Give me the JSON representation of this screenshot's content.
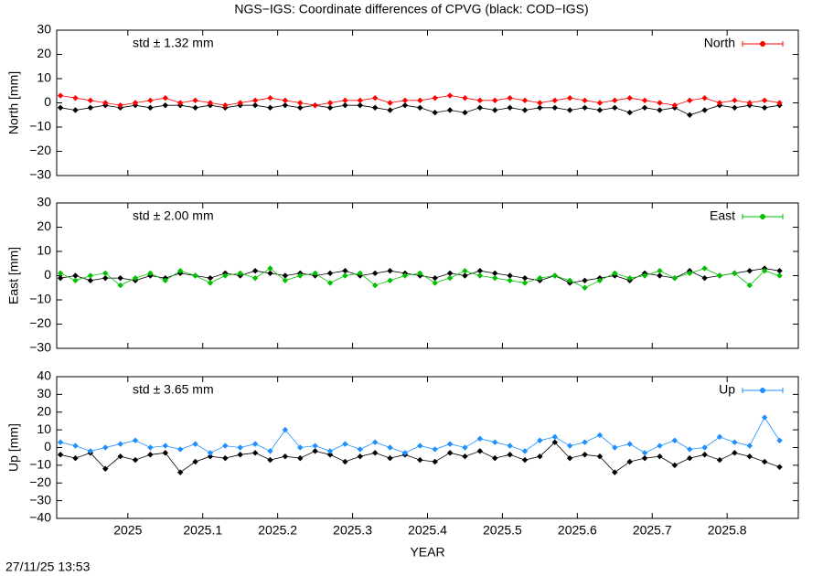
{
  "timestamp": "27/11/25 13:53",
  "chart_data": [
    {
      "type": "line",
      "title": "NGS−IGS: Coordinate differences of CPVG (black: COD−IGS)",
      "ylabel": "North [mm]",
      "annotation": "std ± 1.32 mm",
      "annotation_color": "#ff0000",
      "xlim": [
        2024.905,
        2025.895
      ],
      "xticks": [
        2025,
        2025.1,
        2025.2,
        2025.3,
        2025.4,
        2025.5,
        2025.6,
        2025.7,
        2025.8
      ],
      "ylim": [
        -30,
        30
      ],
      "yticks": [
        {
          "value": -30,
          "label": "−30"
        },
        {
          "value": -20,
          "label": "−20"
        },
        {
          "value": -10,
          "label": "−10"
        },
        0,
        10,
        20,
        30
      ],
      "legend": "upper right",
      "x": [
        2024.91,
        2024.93,
        2024.95,
        2024.97,
        2024.99,
        2025.01,
        2025.03,
        2025.05,
        2025.07,
        2025.09,
        2025.11,
        2025.13,
        2025.15,
        2025.17,
        2025.19,
        2025.21,
        2025.23,
        2025.25,
        2025.27,
        2025.29,
        2025.31,
        2025.33,
        2025.35,
        2025.37,
        2025.39,
        2025.41,
        2025.43,
        2025.45,
        2025.47,
        2025.49,
        2025.51,
        2025.53,
        2025.55,
        2025.57,
        2025.59,
        2025.61,
        2025.63,
        2025.65,
        2025.67,
        2025.69,
        2025.71,
        2025.73,
        2025.75,
        2025.77,
        2025.79,
        2025.81,
        2025.83,
        2025.85,
        2025.87
      ],
      "series": [
        {
          "color": "#000000",
          "values": [
            -2,
            -3,
            -2,
            -1,
            -2,
            -1,
            -2,
            -1,
            -1,
            -2,
            -1,
            -2,
            -1,
            -1,
            -2,
            -1,
            -2,
            -1,
            -2,
            -1,
            -1,
            -2,
            -3,
            -1,
            -2,
            -4,
            -3,
            -4,
            -2,
            -3,
            -2,
            -3,
            -2,
            -2,
            -3,
            -2,
            -3,
            -2,
            -4,
            -2,
            -3,
            -2,
            -5,
            -3,
            -1,
            -2,
            -1,
            -2,
            -1
          ]
        },
        {
          "name": "North",
          "color": "#ff0000",
          "values": [
            3,
            2,
            1,
            0,
            -1,
            0,
            1,
            2,
            0,
            1,
            0,
            -1,
            0,
            1,
            2,
            1,
            0,
            -1,
            0,
            1,
            1,
            2,
            0,
            1,
            1,
            2,
            3,
            2,
            1,
            1,
            2,
            1,
            0,
            1,
            2,
            1,
            0,
            1,
            2,
            1,
            0,
            -1,
            1,
            2,
            0,
            1,
            0,
            1,
            0
          ]
        }
      ]
    },
    {
      "type": "line",
      "ylabel": "East [mm]",
      "annotation": "std ± 2.00 mm",
      "annotation_color": "#00c000",
      "xlim": [
        2024.905,
        2025.895
      ],
      "xticks": [
        2025,
        2025.1,
        2025.2,
        2025.3,
        2025.4,
        2025.5,
        2025.6,
        2025.7,
        2025.8
      ],
      "ylim": [
        -30,
        30
      ],
      "yticks": [
        {
          "value": -30,
          "label": "−30"
        },
        {
          "value": -20,
          "label": "−20"
        },
        {
          "value": -10,
          "label": "−10"
        },
        0,
        10,
        20,
        30
      ],
      "legend": "upper right",
      "x": [
        2024.91,
        2024.93,
        2024.95,
        2024.97,
        2024.99,
        2025.01,
        2025.03,
        2025.05,
        2025.07,
        2025.09,
        2025.11,
        2025.13,
        2025.15,
        2025.17,
        2025.19,
        2025.21,
        2025.23,
        2025.25,
        2025.27,
        2025.29,
        2025.31,
        2025.33,
        2025.35,
        2025.37,
        2025.39,
        2025.41,
        2025.43,
        2025.45,
        2025.47,
        2025.49,
        2025.51,
        2025.53,
        2025.55,
        2025.57,
        2025.59,
        2025.61,
        2025.63,
        2025.65,
        2025.67,
        2025.69,
        2025.71,
        2025.73,
        2025.75,
        2025.77,
        2025.79,
        2025.81,
        2025.83,
        2025.85,
        2025.87
      ],
      "series": [
        {
          "color": "#000000",
          "values": [
            -1,
            0,
            -2,
            -1,
            -1,
            -2,
            0,
            -1,
            1,
            0,
            -1,
            1,
            0,
            2,
            1,
            0,
            1,
            0,
            1,
            2,
            0,
            1,
            2,
            1,
            0,
            -1,
            1,
            0,
            2,
            1,
            0,
            -1,
            -2,
            0,
            -3,
            -2,
            -1,
            0,
            -2,
            1,
            0,
            -1,
            2,
            -1,
            0,
            1,
            2,
            3,
            2
          ]
        },
        {
          "name": "East",
          "color": "#00c000",
          "values": [
            1,
            -2,
            0,
            1,
            -4,
            -1,
            1,
            -2,
            2,
            0,
            -3,
            0,
            1,
            -1,
            3,
            -2,
            0,
            1,
            -3,
            0,
            1,
            -4,
            -2,
            0,
            1,
            -3,
            -1,
            2,
            0,
            -1,
            -2,
            -3,
            -1,
            0,
            -2,
            -5,
            -2,
            1,
            -1,
            0,
            2,
            -1,
            1,
            3,
            0,
            1,
            -4,
            2,
            0
          ]
        }
      ]
    },
    {
      "type": "line",
      "ylabel": "Up [mm]",
      "xlabel": "YEAR",
      "annotation": "std ± 3.65 mm",
      "annotation_color": "#1e8fff",
      "xlim": [
        2024.905,
        2025.895
      ],
      "xticks": [
        2025,
        2025.1,
        2025.2,
        2025.3,
        2025.4,
        2025.5,
        2025.6,
        2025.7,
        2025.8
      ],
      "ylim": [
        -40,
        40
      ],
      "yticks": [
        {
          "value": -40,
          "label": "−40"
        },
        {
          "value": -30,
          "label": "−30"
        },
        {
          "value": -20,
          "label": "−20"
        },
        {
          "value": -10,
          "label": "−10"
        },
        0,
        10,
        20,
        30,
        40
      ],
      "legend": "upper right",
      "x": [
        2024.91,
        2024.93,
        2024.95,
        2024.97,
        2024.99,
        2025.01,
        2025.03,
        2025.05,
        2025.07,
        2025.09,
        2025.11,
        2025.13,
        2025.15,
        2025.17,
        2025.19,
        2025.21,
        2025.23,
        2025.25,
        2025.27,
        2025.29,
        2025.31,
        2025.33,
        2025.35,
        2025.37,
        2025.39,
        2025.41,
        2025.43,
        2025.45,
        2025.47,
        2025.49,
        2025.51,
        2025.53,
        2025.55,
        2025.57,
        2025.59,
        2025.61,
        2025.63,
        2025.65,
        2025.67,
        2025.69,
        2025.71,
        2025.73,
        2025.75,
        2025.77,
        2025.79,
        2025.81,
        2025.83,
        2025.85,
        2025.87
      ],
      "series": [
        {
          "color": "#000000",
          "values": [
            -4,
            -6,
            -3,
            -12,
            -5,
            -7,
            -4,
            -3,
            -14,
            -8,
            -5,
            -6,
            -4,
            -3,
            -7,
            -5,
            -6,
            -2,
            -4,
            -8,
            -5,
            -3,
            -6,
            -4,
            -7,
            -8,
            -3,
            -5,
            -2,
            -6,
            -4,
            -7,
            -5,
            3,
            -6,
            -4,
            -5,
            -14,
            -8,
            -6,
            -5,
            -10,
            -6,
            -4,
            -7,
            -3,
            -5,
            -8,
            -11
          ]
        },
        {
          "name": "Up",
          "color": "#1e8fff",
          "values": [
            3,
            1,
            -2,
            0,
            2,
            4,
            0,
            1,
            -1,
            2,
            -3,
            1,
            0,
            2,
            -2,
            10,
            0,
            1,
            -2,
            2,
            -1,
            3,
            0,
            -3,
            1,
            -1,
            2,
            0,
            5,
            3,
            1,
            -2,
            4,
            6,
            1,
            3,
            7,
            0,
            2,
            -3,
            1,
            4,
            -1,
            0,
            6,
            3,
            1,
            17,
            4
          ]
        }
      ]
    }
  ]
}
